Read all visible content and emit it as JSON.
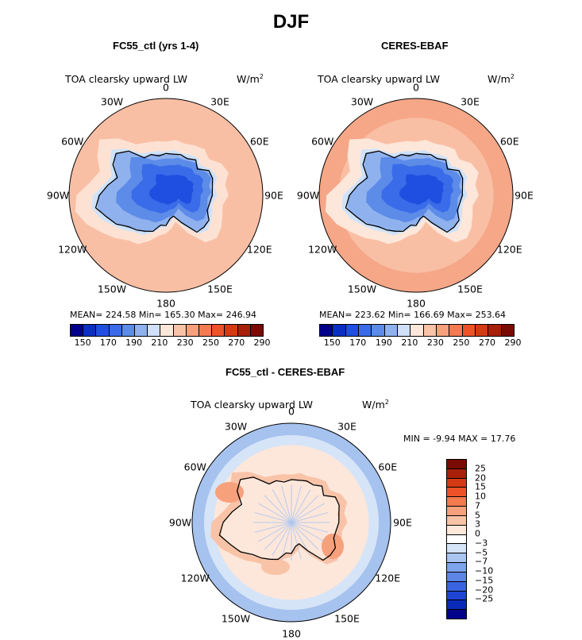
{
  "title": "DJF",
  "panels": {
    "model": {
      "title": "FC55_ctl (yrs 1-4)",
      "variable": "TOA clearsky upward LW",
      "unit_main": "W/m",
      "unit_sup": "2",
      "stats": "MEAN= 224.58   Min= 165.30   Max= 246.94",
      "ocean_color": "#f9bfa5",
      "outer_color": "#f9bfa5",
      "coast_band_color": "#fde2d3",
      "ice_shelf_color": "#cfe2f9"
    },
    "obs": {
      "title": "CERES-EBAF",
      "variable": "TOA clearsky upward LW",
      "unit_main": "W/m",
      "unit_sup": "2",
      "stats": "MEAN= 223.62   Min= 166.69   Max= 253.64",
      "ocean_color": "#f9bfa5",
      "outer_color": "#f5a788",
      "coast_band_color": "#fde7da",
      "ice_shelf_color": "#cfe2f9"
    },
    "diff": {
      "title": "FC55_ctl - CERES-EBAF",
      "variable": "TOA clearsky upward LW",
      "unit_main": "W/m",
      "unit_sup": "2",
      "stats": "MIN =   -9.94  MAX =   17.76"
    }
  },
  "longitude_labels": [
    "0",
    "30E",
    "60E",
    "90E",
    "120E",
    "150E",
    "180",
    "150W",
    "120W",
    "90W",
    "60W",
    "30W"
  ],
  "colorbar_abs": {
    "colors": [
      "#00008b",
      "#0a2fc2",
      "#1e4fe0",
      "#3a6be8",
      "#5c8be8",
      "#8fb1ee",
      "#cfe0f8",
      "#fde7da",
      "#f9c3a8",
      "#f7a07c",
      "#f47a50",
      "#ee5228",
      "#d43a14",
      "#a8200a",
      "#7a0b03"
    ],
    "ticks": [
      "150",
      "170",
      "190",
      "210",
      "230",
      "250",
      "270",
      "290"
    ]
  },
  "colorbar_diff": {
    "colors": [
      "#7a0b03",
      "#a8200a",
      "#d43a14",
      "#ee5228",
      "#f47a50",
      "#f7a07c",
      "#f9c3a8",
      "#fde7da",
      "#ffffff",
      "#d6e4f8",
      "#aac5f0",
      "#7ea4ec",
      "#5c85e6",
      "#3a64e0",
      "#1e44d4",
      "#0a2ab8",
      "#00008b"
    ],
    "ticks": [
      "25",
      "20",
      "15",
      "10",
      "7",
      "5",
      "3",
      "0",
      "−3",
      "−5",
      "−7",
      "−10",
      "−15",
      "−20",
      "−25"
    ]
  },
  "colors": {
    "land_deep": "#1e4fe0",
    "land_mid": "#3a6be8",
    "land_light": "#5c8be8",
    "land_pale": "#8fb1ee",
    "diff_ocean": "#fde7da",
    "diff_outer": "#a6c2ee",
    "diff_warm": "#f7a07c"
  }
}
